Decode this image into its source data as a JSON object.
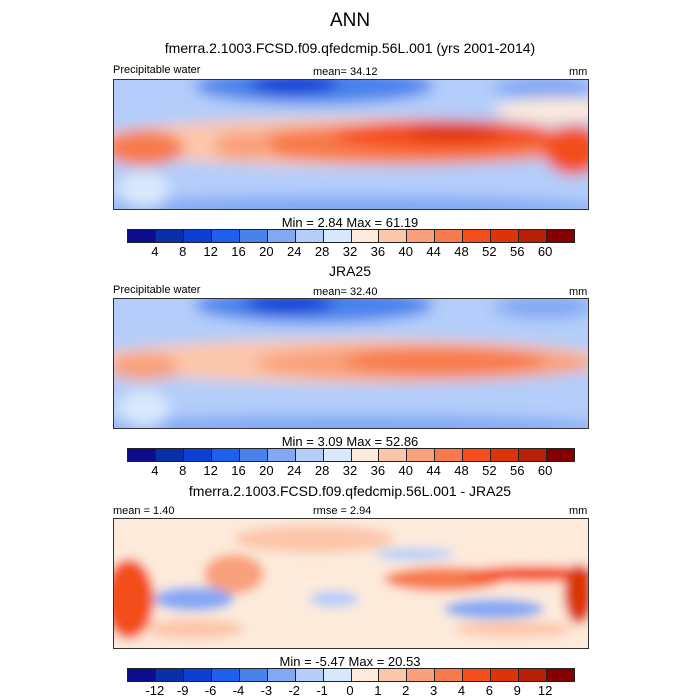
{
  "title": "ANN",
  "panels": [
    {
      "heading": "fmerra.2.1003.FCSD.f09.qfedcmip.56L.001 (yrs 2001-2014)",
      "left_label": "Precipitable water",
      "center_label": "mean=  34.12",
      "units": "mm",
      "minmax": "Min =   2.84 Max =  61.19"
    },
    {
      "heading": "JRA25",
      "left_label": "Precipitable water",
      "center_label": "mean=  32.40",
      "units": "mm",
      "minmax": "Min =   3.09 Max =  52.86"
    },
    {
      "heading": "fmerra.2.1003.FCSD.f09.qfedcmip.56L.001 - JRA25",
      "left_label": "mean =   1.40",
      "center_label": "rmse =   2.94",
      "units": "mm",
      "minmax": "Min =  -5.47 Max =  20.53"
    }
  ],
  "colorbar": {
    "colors": [
      "#0c0c8a",
      "#0a2fa8",
      "#0c3fd4",
      "#1e5ff0",
      "#4a82ec",
      "#82a8f4",
      "#b4cdfa",
      "#d9e9fd",
      "#fdeadb",
      "#fcc6ab",
      "#f9a07c",
      "#f77a4c",
      "#f44e1c",
      "#dc3406",
      "#b82006",
      "#840000"
    ],
    "levels_abs": [
      "4",
      "8",
      "12",
      "16",
      "20",
      "24",
      "28",
      "32",
      "36",
      "40",
      "44",
      "48",
      "52",
      "56",
      "60"
    ],
    "levels_diff": [
      "-12",
      "-9",
      "-6",
      "-4",
      "-3",
      "-2",
      "-1",
      "0",
      "1",
      "2",
      "3",
      "4",
      "6",
      "9",
      "12"
    ]
  }
}
